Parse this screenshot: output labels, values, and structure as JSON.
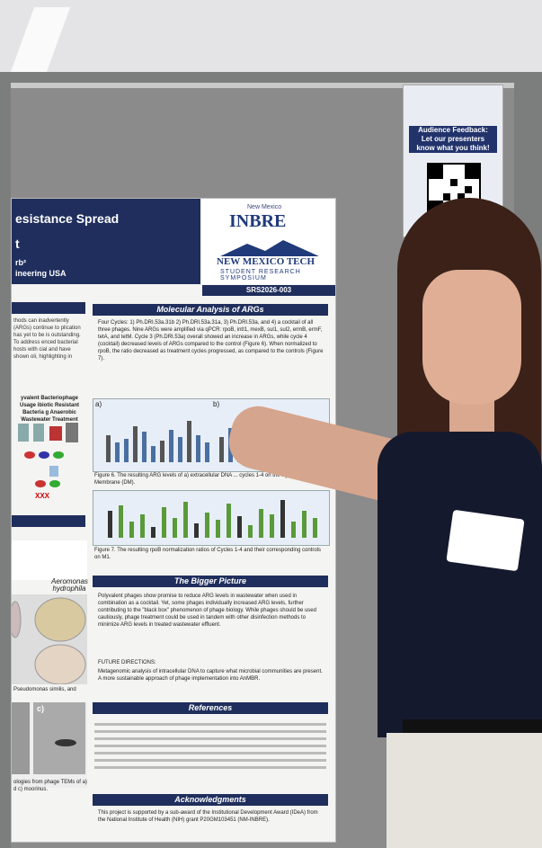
{
  "poster": {
    "title_line1": "esistance Spread",
    "title_line2": "t",
    "author_frag": "rb²",
    "dept_frag": "ineering",
    "loc_frag": "USA",
    "logo_small": "New Mexico",
    "logo_big": "INBRE",
    "logo_univ": "NEW MEXICO TECH",
    "logo_symposium": "STUDENT RESEARCH SYMPOSIUM",
    "poster_id": "SRS2026-003",
    "sec_molecular": "Molecular Analysis of ARGs",
    "molecular_text": "Four Cycles: 1) Ph.DRI.53a.31b 2) Ph.DRI.53a.31a, 3) Ph.DRI.53a, and 4) a cocktail of all three phages. Nine ARGs were amplified via qPCR: rpoB, intI1, mexB, sul1, sul2, ermB, ermF, tetA, and tetM. Cycle 3 (Ph.DRI.53a) overall showed an increase in ARGs, while cycle 4 (cocktail) decreased levels of ARGs compared to the control (Figure 6). When normalized to rpoB, the ratio decreased as treatment cycles progressed, as compared to the controls (Figure 7).",
    "fig6_caption": "Figure 6. The resulting ARG levels of a) extracellular DNA ... cycles 1-4 on the Dynamic Membrane (DM).",
    "fig7_caption": "Figure 7. The resulting rpoB normalization ratios of Cycles 1-4 and their corresponding controls on M1.",
    "sec_bigger": "The Bigger Picture",
    "bigger_text": "Polyvalent phages show promise to reduce ARG levels in wastewater when used in combination as a cocktail. Yet, some phages individually increased ARG levels, further contributing to the \"black box\" phenomenon of phage biology. While phages should be used cautiously, phage treatment could be used in tandem with other disinfection methods to minimize ARG levels in treated wastewater effluent.",
    "future": "FUTURE DIRECTIONS:",
    "future_text": "Metagenomic analysis of intracellular DNA to capture what microbial communities are present. A more sustainable approach of phage implementation into AnMBR.",
    "sec_references": "References",
    "sec_ack": "Acknowledgments",
    "ack_text": "This project is supported by a sub-award of the Institutional Development Award (IDeA) from the National Institute of Health (NIH) grant P20GM103451 (NM-INBRE).",
    "left_col_text": "thods can inadvertently (ARGs) continue to plication has yet to be is outstanding. To address enced bacterial hosts with cial and have shown oli, highlighting in",
    "left_fig_title": "yvalent Bacteriophage Usage ibiotic Resistant Bacteria g Anaerobic Wastewater Treatment",
    "aeromonas": "Aeromonas hydrophila",
    "pseudomonas": "Pseudomonas similis, and",
    "tem_caption": "ologies from phage TEMs of a) d c) moorinus.",
    "panel_c": "c)",
    "chart_a": "a)",
    "chart_b": "b)"
  },
  "qr_card": {
    "line1": "Audience Feedback:",
    "line2": "Let our presenters",
    "line3": "know what you think!"
  },
  "colors": {
    "poster_navy": "#1f2e5c",
    "bar_blue": "#4a6fa0",
    "bar_green": "#5a9a3a"
  }
}
